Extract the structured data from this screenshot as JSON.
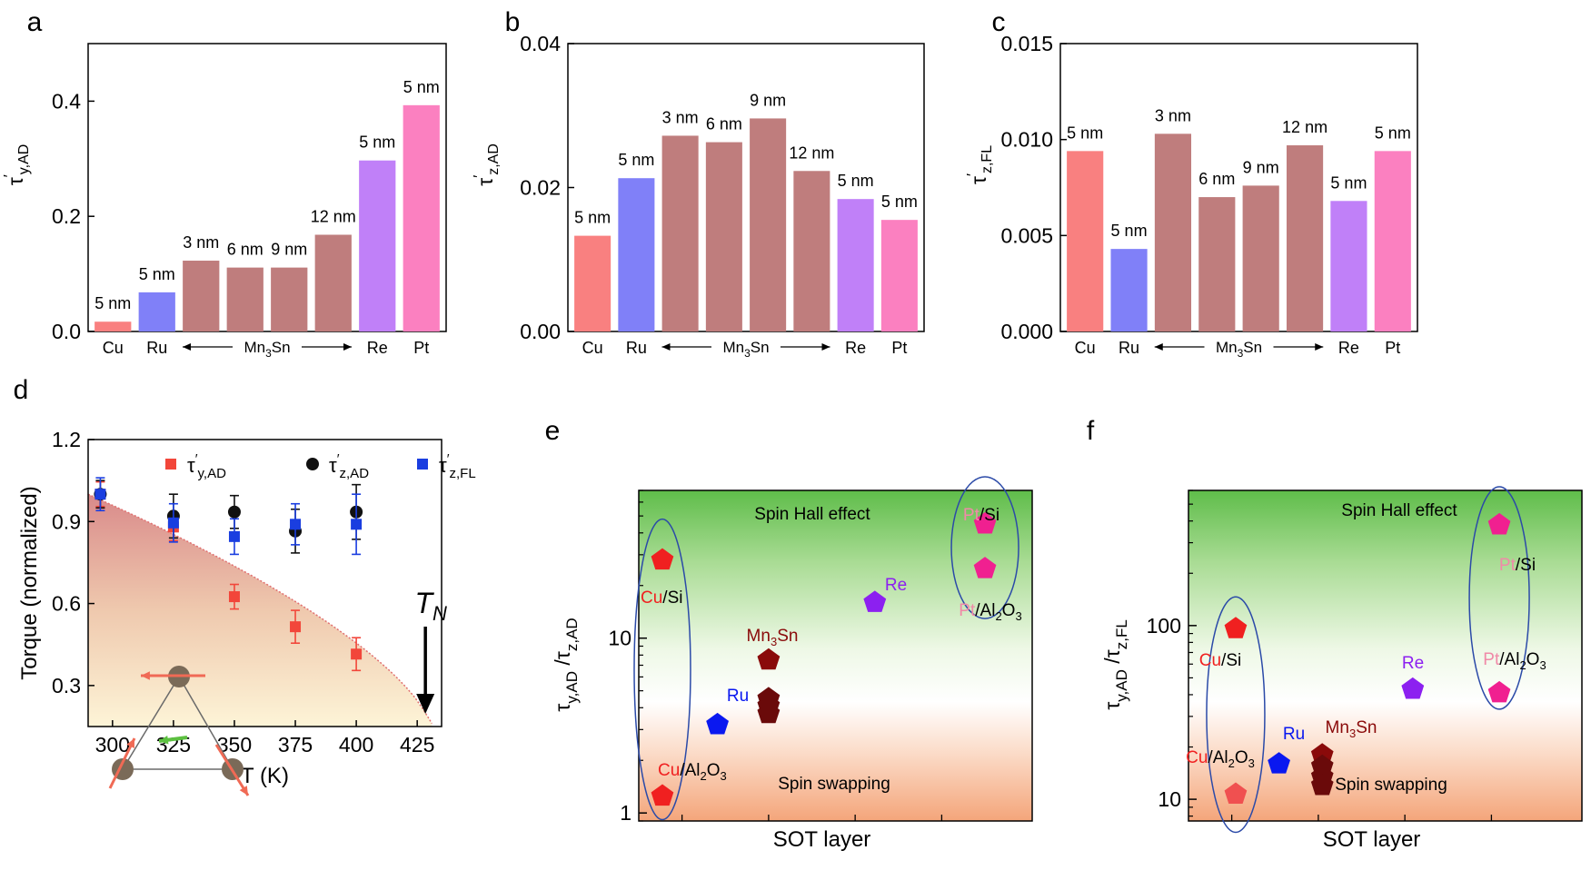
{
  "chart_data": [
    {
      "panel": "a",
      "type": "bar",
      "ylabel": {
        "main": "τ",
        "prime": "′",
        "sub": "y,AD"
      },
      "ylim": [
        0,
        0.5
      ],
      "yticks": [
        0.0,
        0.2,
        0.4
      ],
      "ytick_labels": [
        "0.0",
        "0.2",
        "0.4"
      ],
      "bars": [
        {
          "value": 0.017,
          "label": "5 nm",
          "color": "#f98080"
        },
        {
          "value": 0.068,
          "label": "5 nm",
          "color": "#8080f8"
        },
        {
          "value": 0.123,
          "label": "3 nm",
          "color": "#bf7d7d"
        },
        {
          "value": 0.111,
          "label": "6 nm",
          "color": "#bf7d7d"
        },
        {
          "value": 0.111,
          "label": "9 nm",
          "color": "#bf7d7d"
        },
        {
          "value": 0.168,
          "label": "12 nm",
          "color": "#bf7d7d"
        },
        {
          "value": 0.297,
          "label": "5 nm",
          "color": "#c080f8"
        },
        {
          "value": 0.393,
          "label": "5 nm",
          "color": "#fb80c0"
        }
      ],
      "categories": [
        "Cu",
        "Ru",
        "Re",
        "Pt"
      ],
      "group_label": {
        "main": "Mn",
        "sub": "3",
        "tail": "Sn"
      }
    },
    {
      "panel": "b",
      "type": "bar",
      "ylabel": {
        "main": "τ",
        "prime": "′",
        "sub": "z,AD"
      },
      "ylim": [
        0,
        0.04
      ],
      "yticks": [
        0.0,
        0.02,
        0.04
      ],
      "ytick_labels": [
        "0.00",
        "0.02",
        "0.04"
      ],
      "bars": [
        {
          "value": 0.0133,
          "label": "5 nm",
          "color": "#f98080"
        },
        {
          "value": 0.0213,
          "label": "5 nm",
          "color": "#8080f8"
        },
        {
          "value": 0.0272,
          "label": "3 nm",
          "color": "#bf7d7d"
        },
        {
          "value": 0.0263,
          "label": "6 nm",
          "color": "#bf7d7d"
        },
        {
          "value": 0.0296,
          "label": "9 nm",
          "color": "#bf7d7d"
        },
        {
          "value": 0.0223,
          "label": "12 nm",
          "color": "#bf7d7d"
        },
        {
          "value": 0.0184,
          "label": "5 nm",
          "color": "#c080f8"
        },
        {
          "value": 0.0155,
          "label": "5 nm",
          "color": "#fb80c0"
        }
      ],
      "categories": [
        "Cu",
        "Ru",
        "Re",
        "Pt"
      ],
      "group_label": {
        "main": "Mn",
        "sub": "3",
        "tail": "Sn"
      }
    },
    {
      "panel": "c",
      "type": "bar",
      "ylabel": {
        "main": "τ",
        "prime": "′",
        "sub": "z,FL"
      },
      "ylim": [
        0,
        0.015
      ],
      "yticks": [
        0.0,
        0.005,
        0.01,
        0.015
      ],
      "ytick_labels": [
        "0.000",
        "0.005",
        "0.010",
        "0.015"
      ],
      "bars": [
        {
          "value": 0.0094,
          "label": "5 nm",
          "color": "#f98080"
        },
        {
          "value": 0.0043,
          "label": "5 nm",
          "color": "#8080f8"
        },
        {
          "value": 0.0103,
          "label": "3 nm",
          "color": "#bf7d7d"
        },
        {
          "value": 0.007,
          "label": "6 nm",
          "color": "#bf7d7d"
        },
        {
          "value": 0.0076,
          "label": "9 nm",
          "color": "#bf7d7d"
        },
        {
          "value": 0.0097,
          "label": "12 nm",
          "color": "#bf7d7d"
        },
        {
          "value": 0.0068,
          "label": "5 nm",
          "color": "#c080f8"
        },
        {
          "value": 0.0094,
          "label": "5 nm",
          "color": "#fb80c0"
        }
      ],
      "categories": [
        "Cu",
        "Ru",
        "Re",
        "Pt"
      ],
      "group_label": {
        "main": "Mn",
        "sub": "3",
        "tail": "Sn"
      }
    },
    {
      "panel": "d",
      "type": "scatter",
      "xlabel": "T (K)",
      "ylabel": "Torque (normalized)",
      "xlim": [
        290,
        435
      ],
      "ylim": [
        0.15,
        1.2
      ],
      "xticks": [
        300,
        325,
        350,
        375,
        400,
        425
      ],
      "yticks": [
        0.3,
        0.6,
        0.9,
        1.2
      ],
      "ytick_labels": [
        "0.3",
        "0.6",
        "0.9",
        "1.2"
      ],
      "series": [
        {
          "name": "y,AD",
          "marker": "square",
          "color": "#f2463a",
          "x": [
            295,
            325,
            350,
            375,
            400
          ],
          "y": [
            1.0,
            0.88,
            0.625,
            0.515,
            0.415
          ],
          "err": [
            0.045,
            0.05,
            0.045,
            0.06,
            0.06
          ]
        },
        {
          "name": "z,AD",
          "marker": "circle",
          "color": "#111111",
          "x": [
            295,
            325,
            350,
            375,
            400
          ],
          "y": [
            1.0,
            0.92,
            0.935,
            0.865,
            0.935
          ],
          "err": [
            0.05,
            0.08,
            0.06,
            0.08,
            0.1
          ]
        },
        {
          "name": "z,FL",
          "marker": "square",
          "color": "#1a3ee0",
          "x": [
            295,
            325,
            350,
            375,
            400
          ],
          "y": [
            1.0,
            0.895,
            0.845,
            0.89,
            0.89
          ],
          "err": [
            0.06,
            0.07,
            0.065,
            0.075,
            0.11
          ]
        }
      ],
      "tn_label": {
        "main": "T",
        "sub": "N"
      },
      "tn_value": 425
    },
    {
      "panel": "e",
      "type": "scatter",
      "xlabel": "SOT layer",
      "ylabel": {
        "pre": "τ",
        "sub1": "y,AD",
        "mid": " /τ",
        "sub2": "z,AD"
      },
      "scale": "log",
      "ylim": [
        0.9,
        70
      ],
      "yticks": [
        1,
        10
      ],
      "ytick_labels": [
        "1",
        "10"
      ],
      "region_labels": {
        "top": "Spin Hall effect",
        "bottom": "Spin swapping"
      },
      "points": [
        {
          "x": 0.06,
          "y": 28,
          "color": "#f02020",
          "label": {
            "hl": "Cu",
            "rest": "/Si"
          }
        },
        {
          "x": 0.06,
          "y": 1.25,
          "color": "#f02020",
          "label": {
            "hl": "Cu",
            "rest": "/Al",
            "sub": "2",
            "tail": "O",
            "sub2": "3"
          }
        },
        {
          "x": 0.2,
          "y": 3.2,
          "color": "#0a18f0",
          "label": {
            "name": "Ru"
          }
        },
        {
          "x": 0.33,
          "y": 7.5,
          "color": "#8a0a0a",
          "label": {
            "name": "Mn",
            "sub": "3",
            "tail": "Sn"
          }
        },
        {
          "x": 0.33,
          "y": 4.5,
          "color": "#6a0a0a"
        },
        {
          "x": 0.33,
          "y": 4.1,
          "color": "#6a0a0a"
        },
        {
          "x": 0.33,
          "y": 3.7,
          "color": "#6a0a0a"
        },
        {
          "x": 0.6,
          "y": 16,
          "color": "#8c20f0",
          "label": {
            "name": "Re"
          }
        },
        {
          "x": 0.88,
          "y": 45,
          "color": "#f02090",
          "label": {
            "hl": "Pt",
            "rest": "/Si"
          }
        },
        {
          "x": 0.88,
          "y": 25,
          "color": "#f02090",
          "label": {
            "hl": "Pt",
            "rest": "/Al",
            "sub": "2",
            "tail": "O",
            "sub2": "3"
          }
        }
      ]
    },
    {
      "panel": "f",
      "type": "scatter",
      "xlabel": "SOT layer",
      "ylabel": {
        "pre": "τ",
        "sub1": "y,AD",
        "mid": " /τ",
        "sub2": "z,FL"
      },
      "scale": "log",
      "ylim": [
        7.5,
        600
      ],
      "yticks": [
        10,
        100
      ],
      "ytick_labels": [
        "10",
        "100"
      ],
      "region_labels": {
        "top": "Spin Hall effect",
        "bottom": "Spin swapping"
      },
      "points": [
        {
          "x": 0.12,
          "y": 96,
          "color": "#f02020",
          "label": {
            "hl": "Cu",
            "rest": "/Si"
          }
        },
        {
          "x": 0.12,
          "y": 10.7,
          "color": "#f05050",
          "label": {
            "hl": "Cu",
            "rest": "/Al",
            "sub": "2",
            "tail": "O",
            "sub2": "3"
          }
        },
        {
          "x": 0.23,
          "y": 16,
          "color": "#0a18f0",
          "label": {
            "name": "Ru"
          }
        },
        {
          "x": 0.34,
          "y": 18,
          "color": "#8a0a0a",
          "label": {
            "name": "Mn",
            "sub": "3",
            "tail": "Sn"
          }
        },
        {
          "x": 0.34,
          "y": 15.5,
          "color": "#6a0a0a"
        },
        {
          "x": 0.34,
          "y": 13.5,
          "color": "#6a0a0a"
        },
        {
          "x": 0.34,
          "y": 12,
          "color": "#6a0a0a"
        },
        {
          "x": 0.57,
          "y": 43,
          "color": "#8c20f0",
          "label": {
            "name": "Re"
          }
        },
        {
          "x": 0.79,
          "y": 380,
          "color": "#f02090",
          "label": {
            "hl": "Pt",
            "rest": "/Si"
          }
        },
        {
          "x": 0.79,
          "y": 41,
          "color": "#f02090",
          "label": {
            "hl": "Pt",
            "rest": "/Al",
            "sub": "2",
            "tail": "O",
            "sub2": "3"
          }
        }
      ]
    }
  ],
  "panel_letters": [
    "a",
    "b",
    "c",
    "d",
    "e",
    "f"
  ],
  "legend_d": [
    {
      "main": "τ",
      "prime": "′",
      "sub": "y,AD"
    },
    {
      "main": "τ",
      "prime": "′",
      "sub": "z,AD"
    },
    {
      "main": "τ",
      "prime": "′",
      "sub": "z,FL"
    }
  ]
}
